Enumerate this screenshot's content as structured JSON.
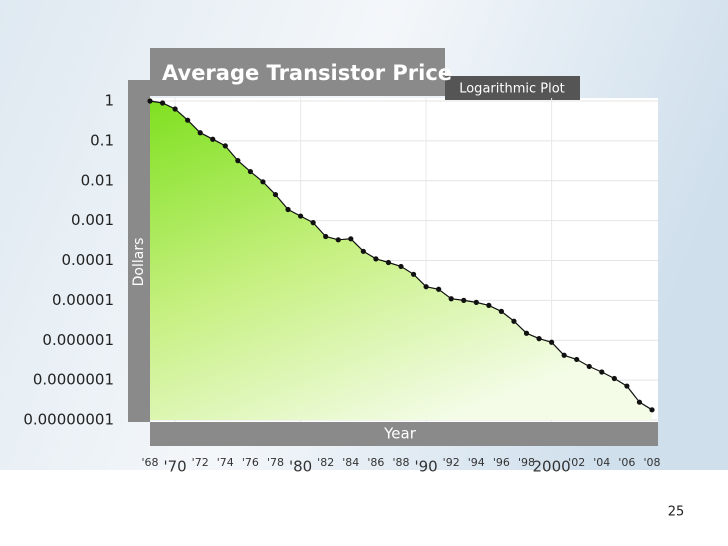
{
  "chart_data": {
    "type": "line",
    "title": "Average Transistor Price",
    "subtitle": "Logarithmic Plot",
    "ylabel": "Dollars",
    "xlabel": "Year",
    "log_scale": true,
    "grid": true,
    "color": "#111111",
    "x": [
      1968,
      1969,
      1970,
      1971,
      1972,
      1973,
      1974,
      1975,
      1976,
      1977,
      1978,
      1979,
      1980,
      1981,
      1982,
      1983,
      1984,
      1985,
      1986,
      1987,
      1988,
      1989,
      1990,
      1991,
      1992,
      1993,
      1994,
      1995,
      1996,
      1997,
      1998,
      1999,
      2000,
      2001,
      2002,
      2003,
      2004,
      2005,
      2006,
      2007,
      2008
    ],
    "values": [
      1,
      0.89,
      0.63,
      0.33,
      0.16,
      0.11,
      0.075,
      0.032,
      0.017,
      0.0094,
      0.0045,
      0.0019,
      0.0013,
      0.00089,
      0.0004,
      0.00033,
      0.00035,
      0.00017,
      0.00011,
      8.9e-05,
      7.1e-05,
      4.5e-05,
      2.2e-05,
      1.9e-05,
      1.1e-05,
      1e-05,
      8.9e-06,
      7.5e-06,
      5.3e-06,
      3e-06,
      1.5e-06,
      1.1e-06,
      8.9e-07,
      4.2e-07,
      3.3e-07,
      2.2e-07,
      1.6e-07,
      1.1e-07,
      7.1e-08,
      2.8e-08,
      1.8e-08
    ],
    "xlim": [
      1968,
      2008
    ],
    "xticks": [
      {
        "value": 1968,
        "label": "'68"
      },
      {
        "value": 1970,
        "label": "'70"
      },
      {
        "value": 1972,
        "label": "'72"
      },
      {
        "value": 1974,
        "label": "'74"
      },
      {
        "value": 1976,
        "label": "'76"
      },
      {
        "value": 1978,
        "label": "'78"
      },
      {
        "value": 1980,
        "label": "'80"
      },
      {
        "value": 1982,
        "label": "'82"
      },
      {
        "value": 1984,
        "label": "'84"
      },
      {
        "value": 1986,
        "label": "'86"
      },
      {
        "value": 1988,
        "label": "'88"
      },
      {
        "value": 1990,
        "label": "'90"
      },
      {
        "value": 1992,
        "label": "'92"
      },
      {
        "value": 1994,
        "label": "'94"
      },
      {
        "value": 1996,
        "label": "'96"
      },
      {
        "value": 1998,
        "label": "'98"
      },
      2000,
      {
        "value": 2002,
        "label": "'02"
      },
      {
        "value": 2004,
        "label": "'04"
      },
      {
        "value": 2006,
        "label": "'06"
      },
      {
        "value": 2008,
        "label": "'08"
      }
    ],
    "ylim": [
      1e-08,
      1
    ],
    "yticks": [
      1,
      0.1,
      0.01,
      0.001,
      0.0001,
      1e-05,
      1e-06,
      {
        "value": 1e-07,
        "label": "0.0000001"
      },
      {
        "value": 1e-08,
        "label": "0.00000001"
      }
    ]
  },
  "slide": {
    "page_number": "25"
  }
}
